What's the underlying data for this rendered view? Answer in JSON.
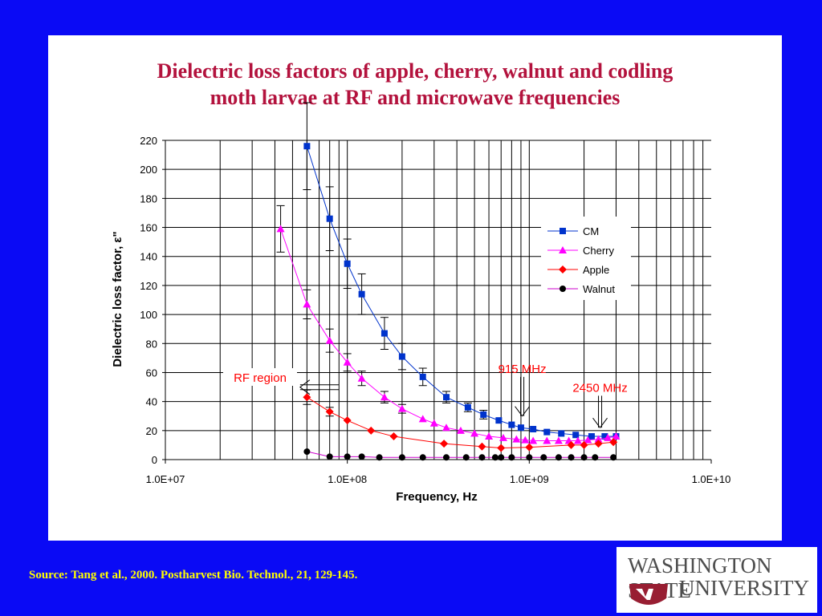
{
  "slide": {
    "title_line1": "Dielectric loss factors of apple, cherry, walnut and codling",
    "title_line2": "moth larvae at RF and microwave frequencies",
    "source": "Source: Tang et al., 2000. Postharvest Bio. Technol., 21, 129-145.",
    "logo_line1": "WASHINGTON STATE",
    "logo_line2": "UNIVERSITY",
    "background_color": "#0a0af5",
    "title_color": "#b3123d",
    "source_color": "#ffff00"
  },
  "chart_data": {
    "type": "scatter",
    "xlabel": "Frequency, Hz",
    "ylabel": "Dielectric loss factor, ε\"",
    "x_scale": "log",
    "xlim": [
      10000000,
      10000000000
    ],
    "ylim": [
      0,
      220
    ],
    "x_ticks": [
      10000000,
      100000000,
      1000000000,
      10000000000
    ],
    "x_tick_labels": [
      "1.0E+07",
      "1.0E+08",
      "1.0E+09",
      "1.0E+10"
    ],
    "y_ticks": [
      0,
      20,
      40,
      60,
      80,
      100,
      120,
      140,
      160,
      180,
      200,
      220
    ],
    "y_tick_labels": [
      "0",
      "20",
      "40",
      "60",
      "80",
      "100",
      "120",
      "140",
      "160",
      "180",
      "200",
      "220"
    ],
    "grid": true,
    "legend_position": "right",
    "series": [
      {
        "name": "CM",
        "color": "#0033cc",
        "marker": "square",
        "x": [
          60000000,
          80000000,
          100000000,
          120000000,
          160000000,
          200000000,
          260000000,
          350000000,
          460000000,
          560000000,
          680000000,
          800000000,
          900000000,
          1050000000,
          1250000000,
          1500000000,
          1800000000,
          2200000000,
          2600000000,
          3000000000
        ],
        "y": [
          216,
          166,
          135,
          114,
          87,
          71,
          57,
          43,
          36,
          31,
          27,
          24,
          22,
          21,
          19,
          18,
          17,
          16,
          16,
          16
        ],
        "error": [
          30,
          22,
          17,
          14,
          11,
          9,
          6,
          4,
          3,
          3,
          2,
          2,
          2,
          2,
          1,
          1,
          1,
          1,
          1,
          1
        ]
      },
      {
        "name": "Cherry",
        "color": "#ff00ff",
        "marker": "triangle",
        "x": [
          43000000,
          60000000,
          80000000,
          100000000,
          120000000,
          160000000,
          200000000,
          260000000,
          300000000,
          350000000,
          420000000,
          500000000,
          600000000,
          720000000,
          850000000,
          950000000,
          1050000000,
          1250000000,
          1450000000,
          1650000000,
          1850000000,
          2100000000,
          2400000000,
          2700000000,
          3000000000
        ],
        "y": [
          159,
          107,
          82,
          67,
          56,
          43,
          35,
          28,
          25,
          22,
          20,
          18,
          16,
          15,
          14,
          13.5,
          13,
          13,
          13,
          13,
          13,
          13.5,
          14,
          15,
          16
        ],
        "error": [
          16,
          10,
          8,
          6,
          5,
          4,
          3,
          2,
          2,
          2,
          1,
          1,
          1,
          1,
          1,
          1,
          1,
          1,
          1,
          1,
          1,
          1,
          1,
          1,
          1
        ]
      },
      {
        "name": "Apple",
        "color": "#ff0000",
        "marker": "diamond",
        "x": [
          60000000,
          80000000,
          100000000,
          135000000,
          180000000,
          340000000,
          550000000,
          700000000,
          1000000000,
          1700000000,
          2000000000,
          2400000000,
          2900000000
        ],
        "y": [
          43,
          33,
          27,
          20,
          16,
          11,
          9,
          8,
          8.5,
          10,
          10,
          11,
          12
        ],
        "error": [
          5,
          3,
          2,
          1,
          1,
          1,
          1,
          1,
          1,
          1,
          1,
          1,
          1
        ]
      },
      {
        "name": "Walnut",
        "color": "#000000",
        "line_color": "#cc00cc",
        "marker": "circle",
        "x": [
          60000000,
          80000000,
          100000000,
          120000000,
          150000000,
          200000000,
          260000000,
          350000000,
          450000000,
          550000000,
          650000000,
          700000000,
          800000000,
          1000000000,
          1200000000,
          1450000000,
          1700000000,
          2000000000,
          2300000000,
          2900000000
        ],
        "y": [
          5.5,
          2,
          2,
          2,
          1.5,
          1.5,
          1.5,
          1.5,
          1.5,
          1.5,
          1.5,
          1.5,
          1.5,
          1.5,
          1.5,
          1.5,
          1.5,
          1.5,
          1.5,
          1.5
        ],
        "error": []
      }
    ],
    "annotations": [
      {
        "text": "RF region",
        "color": "#ff0000",
        "x": 29000000,
        "y": 56,
        "arrow_from": 90000000,
        "arrow_to": 55000000
      },
      {
        "text": "915 MHz",
        "color": "#ff0000",
        "x": 915000000,
        "y": 62,
        "arrow_y_from": 57,
        "arrow_y_to": 30
      },
      {
        "text": "2450 MHz",
        "color": "#ff0000",
        "x": 2450000000,
        "y": 49,
        "arrow_y_from": 44,
        "arrow_y_to": 22
      }
    ]
  }
}
